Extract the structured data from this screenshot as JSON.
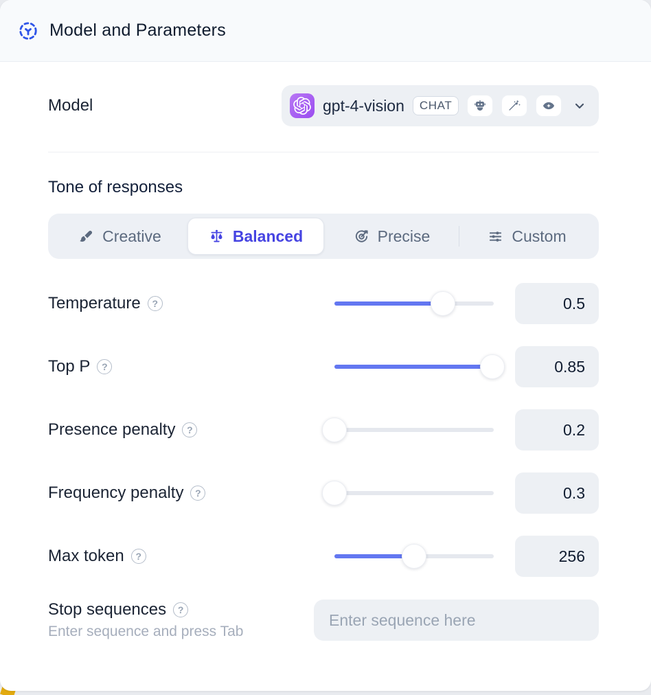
{
  "header": {
    "title": "Model and Parameters",
    "icon": "model-dashed-circle-icon"
  },
  "model_row": {
    "label": "Model",
    "selected_model": "gpt-4-vision",
    "provider_icon": "openai-logo",
    "type_badge": "CHAT",
    "capability_icons": [
      "assistant-robot-icon",
      "magic-wand-icon",
      "vision-eye-icon"
    ]
  },
  "tone": {
    "heading": "Tone of responses",
    "options": [
      {
        "label": "Creative",
        "icon": "paintbrush-icon",
        "selected": false
      },
      {
        "label": "Balanced",
        "icon": "balance-scale-icon",
        "selected": true
      },
      {
        "label": "Precise",
        "icon": "target-arrow-icon",
        "selected": false
      },
      {
        "label": "Custom",
        "icon": "sliders-icon",
        "selected": false
      }
    ]
  },
  "parameters": {
    "items": [
      {
        "label": "Temperature",
        "value": "0.5",
        "fill_pct": 68
      },
      {
        "label": "Top P",
        "value": "0.85",
        "fill_pct": 99
      },
      {
        "label": "Presence penalty",
        "value": "0.2",
        "fill_pct": 0
      },
      {
        "label": "Frequency penalty",
        "value": "0.3",
        "fill_pct": 0
      },
      {
        "label": "Max token",
        "value": "256",
        "fill_pct": 50
      }
    ]
  },
  "stop_sequences": {
    "label": "Stop sequences",
    "hint": "Enter sequence and press Tab",
    "placeholder": "Enter sequence here",
    "value": ""
  },
  "misc": {
    "help_glyph": "?"
  },
  "colors": {
    "header_icon_blue": "#2F55E8",
    "selected_indigo": "#4644E2",
    "slider_blue": "#6377F1",
    "provider_purple": "#9A4CF0",
    "surface_gray": "#EDF0F4",
    "accent_yellow": "#E2AA0F",
    "text_dark": "#1B2434",
    "text_slate": "#5C6A7F"
  }
}
